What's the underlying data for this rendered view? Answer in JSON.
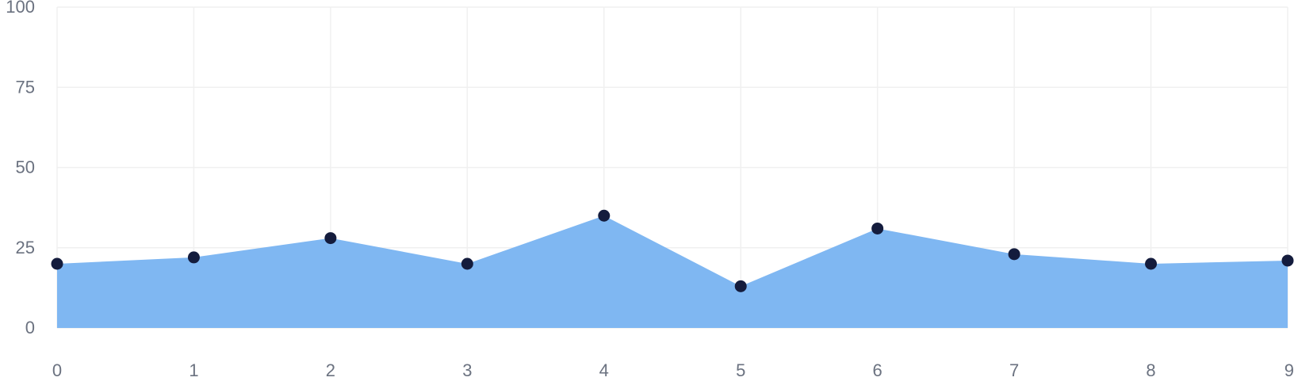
{
  "chart_data": {
    "type": "area",
    "x": [
      0,
      1,
      2,
      3,
      4,
      5,
      6,
      7,
      8,
      9
    ],
    "values": [
      20,
      22,
      28,
      20,
      35,
      13,
      31,
      23,
      20,
      21
    ],
    "xlim": [
      0,
      9
    ],
    "ylim": [
      0,
      100
    ],
    "y_ticks": [
      0,
      25,
      50,
      75,
      100
    ],
    "x_ticks": [
      0,
      1,
      2,
      3,
      4,
      5,
      6,
      7,
      8,
      9
    ],
    "title": "",
    "xlabel": "",
    "ylabel": "",
    "grid": true,
    "colors": {
      "area_fill": "#7fb7f2",
      "marker": "#141c3d",
      "grid": "#f0f0f0",
      "tick_text": "#6b7280"
    }
  }
}
